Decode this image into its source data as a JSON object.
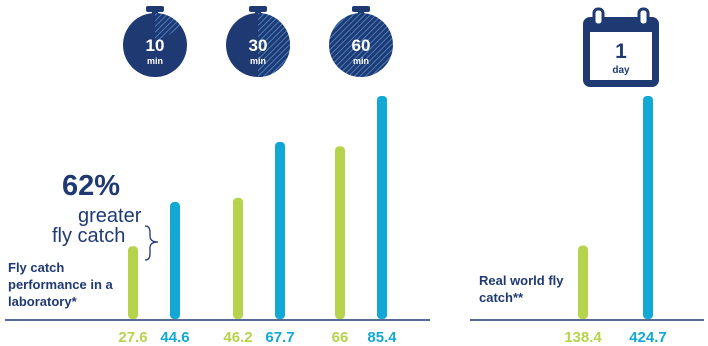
{
  "colors": {
    "navy": "#1f3a73",
    "green": "#b5d34b",
    "blue": "#12a8d4",
    "white": "#ffffff"
  },
  "annotation": {
    "percent": "62%",
    "line1": "greater",
    "line2": "fly catch"
  },
  "lab_label": "Fly catch performance in a laboratory*",
  "real_label": "Real world fly catch**",
  "icons": {
    "timer_unit": "min",
    "calendar_number": "1",
    "calendar_unit": "day"
  },
  "chart_data": {
    "type": "bar",
    "categories": [
      "10",
      "30",
      "60",
      "1"
    ],
    "category_units": [
      "min",
      "min",
      "min",
      "day"
    ],
    "series": [
      {
        "values": [
          27.6,
          46.2,
          66,
          138.4
        ]
      },
      {
        "values": [
          44.6,
          67.7,
          85.4,
          424.7
        ]
      }
    ],
    "value_labels": [
      [
        "27.6",
        "44.6"
      ],
      [
        "46.2",
        "67.7"
      ],
      [
        "66",
        "85.4"
      ],
      [
        "138.4",
        "424.7"
      ]
    ],
    "grid": false,
    "legend": "none"
  }
}
